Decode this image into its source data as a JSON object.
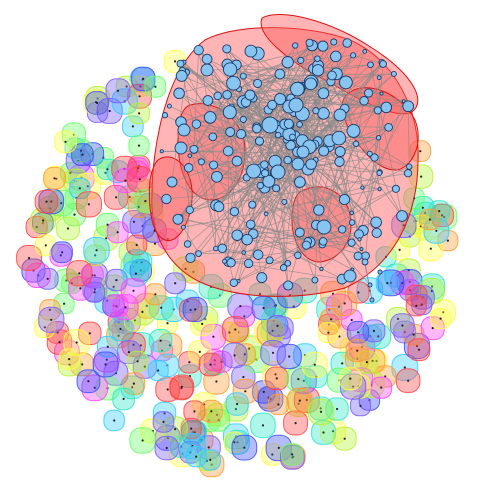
{
  "figure": {
    "kind": "network-graph-with-community-hulls",
    "background": "#ffffff",
    "core_cluster": {
      "hull_fill": "#ff5a5a",
      "hull_stroke": "#dd1111",
      "hull_opacity": 0.45,
      "node_fill": "#88c4f0",
      "node_stroke": "#1a3a6a",
      "edge_color": "#8a8a8a",
      "node_count": 210
    },
    "satellite_cluster": {
      "node_fill": "#88c4f0",
      "edge_color": "#8a8a8a",
      "node_count": 6
    },
    "periphery": {
      "node_count": 330,
      "bubble_opacity": 0.38,
      "bubble_palette": [
        "#ff44ff",
        "#7a5cff",
        "#3d4dff",
        "#33ccff",
        "#2ee6c8",
        "#66ff66",
        "#b5f233",
        "#ffff44",
        "#ff4444",
        "#ff9a33"
      ],
      "node_dot_color": "#222222"
    }
  }
}
